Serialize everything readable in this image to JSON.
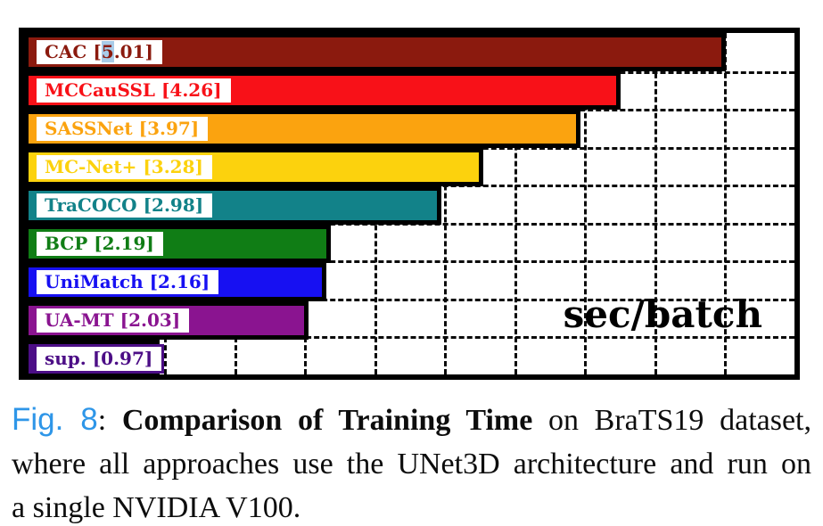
{
  "chart_data": {
    "type": "bar",
    "orientation": "horizontal",
    "unit_label": "sec/batch",
    "xlim": [
      0,
      5.5
    ],
    "grid_step": 0.5,
    "grid": "dashed",
    "categories": [
      "CAC",
      "MCCauSSL",
      "SASSNet",
      "MC-Net+",
      "TraCOCO",
      "BCP",
      "UniMatch",
      "UA-MT",
      "sup."
    ],
    "values": [
      5.01,
      4.26,
      3.97,
      3.28,
      2.98,
      2.19,
      2.16,
      2.03,
      0.97
    ],
    "bars": [
      {
        "name": "CAC",
        "value": 5.01,
        "label": "CAC [5.01]",
        "color": "#8B1A0E",
        "highlight": {
          "pre": "CAC [",
          "char": "5",
          "post": ".01]",
          "bg": "#A9CBE8"
        }
      },
      {
        "name": "MCCauSSL",
        "value": 4.26,
        "label": "MCCauSSL [4.26]",
        "color": "#F81118"
      },
      {
        "name": "SASSNet",
        "value": 3.97,
        "label": "SASSNet [3.97]",
        "color": "#FBA30F"
      },
      {
        "name": "MC-Net+",
        "value": 3.28,
        "label": "MC-Net+ [3.28]",
        "color": "#FCD20D"
      },
      {
        "name": "TraCOCO",
        "value": 2.98,
        "label": "TraCOCO [2.98]",
        "color": "#128289"
      },
      {
        "name": "BCP",
        "value": 2.19,
        "label": "BCP [2.19]",
        "color": "#107D15"
      },
      {
        "name": "UniMatch",
        "value": 2.16,
        "label": "UniMatch [2.16]",
        "color": "#1710F2"
      },
      {
        "name": "UA-MT",
        "value": 2.03,
        "label": "UA-MT [2.03]",
        "color": "#8A1490"
      },
      {
        "name": "sup.",
        "value": 0.97,
        "label": "sup. [0.97]",
        "color": "#4C0E86"
      }
    ]
  },
  "caption": {
    "fig_label": "Fig. 8",
    "colon": ": ",
    "title": "Comparison of Training Time",
    "line1_rest": " on BraTS19 dataset,",
    "line2": "where all approaches use the UNet3D architecture and run on",
    "line3": "a single NVIDIA V100.",
    "fig_label_color": "#2E96E8",
    "full_text": "Fig. 8: Comparison of Training Time on BraTS19 dataset, where all approaches use the UNet3D architecture and run on a single NVIDIA V100."
  }
}
